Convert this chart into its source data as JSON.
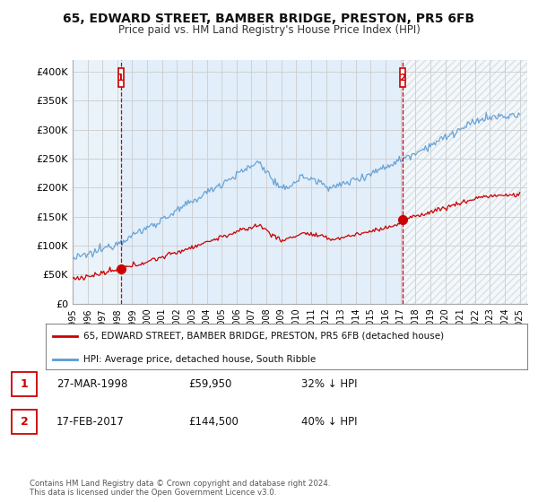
{
  "title": "65, EDWARD STREET, BAMBER BRIDGE, PRESTON, PR5 6FB",
  "subtitle": "Price paid vs. HM Land Registry's House Price Index (HPI)",
  "ylabel_ticks": [
    "£0",
    "£50K",
    "£100K",
    "£150K",
    "£200K",
    "£250K",
    "£300K",
    "£350K",
    "£400K"
  ],
  "ytick_values": [
    0,
    50000,
    100000,
    150000,
    200000,
    250000,
    300000,
    350000,
    400000
  ],
  "ylim": [
    0,
    420000
  ],
  "xlim_start": 1995.0,
  "xlim_end": 2025.5,
  "hpi_color": "#5B9BD5",
  "hpi_fill_color": "#D6E8F7",
  "property_color": "#CC0000",
  "marker1_date": 1998.23,
  "marker1_value": 59950,
  "marker1_label": "1",
  "marker2_date": 2017.12,
  "marker2_value": 144500,
  "marker2_label": "2",
  "annotation1_date": "27-MAR-1998",
  "annotation1_price": "£59,950",
  "annotation1_hpi": "32% ↓ HPI",
  "annotation2_date": "17-FEB-2017",
  "annotation2_price": "£144,500",
  "annotation2_hpi": "40% ↓ HPI",
  "legend_property": "65, EDWARD STREET, BAMBER BRIDGE, PRESTON, PR5 6FB (detached house)",
  "legend_hpi": "HPI: Average price, detached house, South Ribble",
  "footer": "Contains HM Land Registry data © Crown copyright and database right 2024.\nThis data is licensed under the Open Government Licence v3.0.",
  "xtick_years": [
    1995,
    1996,
    1997,
    1998,
    1999,
    2000,
    2001,
    2002,
    2003,
    2004,
    2005,
    2006,
    2007,
    2008,
    2009,
    2010,
    2011,
    2012,
    2013,
    2014,
    2015,
    2016,
    2017,
    2018,
    2019,
    2020,
    2021,
    2022,
    2023,
    2024,
    2025
  ],
  "background_color": "#FFFFFF",
  "grid_color": "#CCCCCC"
}
